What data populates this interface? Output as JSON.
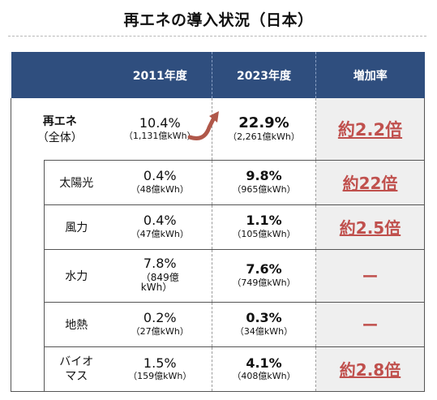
{
  "title": "再エネの導入状況（日本）",
  "header": {
    "col1": "",
    "col2": "2011年度",
    "col3": "2023年度",
    "col4": "増加率"
  },
  "rows": [
    {
      "name": "再エネ",
      "name_sub": "（全体）",
      "v2011": "10.4%",
      "v2011_sub": "（1,131億kWh）",
      "v2023": "22.9%",
      "v2023_sub": "（2,261億kWh）",
      "ratio": "約2.2倍"
    },
    {
      "name": "太陽光",
      "v2011": "0.4%",
      "v2011_sub": "（48億kWh）",
      "v2023": "9.8%",
      "v2023_sub": "（965億kWh）",
      "ratio": "約22倍"
    },
    {
      "name": "風力",
      "v2011": "0.4%",
      "v2011_sub": "（47億kWh）",
      "v2023": "1.1%",
      "v2023_sub": "（105億kWh）",
      "ratio": "約2.5倍"
    },
    {
      "name": "水力",
      "v2011": "7.8%",
      "v2011_sub": "（849億\nkWh）",
      "v2023": "7.6%",
      "v2023_sub": "（749億kWh）",
      "ratio": "ー"
    },
    {
      "name": "地熱",
      "v2011": "0.2%",
      "v2011_sub": "（27億kWh）",
      "v2023": "0.3%",
      "v2023_sub": "（34億kWh）",
      "ratio": "ー"
    },
    {
      "name": "バイオ\nマス",
      "v2011": "1.5%",
      "v2011_sub": "（159億kWh）",
      "v2023": "4.1%",
      "v2023_sub": "（408億kWh）",
      "ratio": "約2.8倍"
    }
  ],
  "colors": {
    "header_bg": "#2f4e7e",
    "ratio_text": "#c0504d",
    "ratio_bg": "#efefef",
    "arrow": "#b0584a"
  }
}
